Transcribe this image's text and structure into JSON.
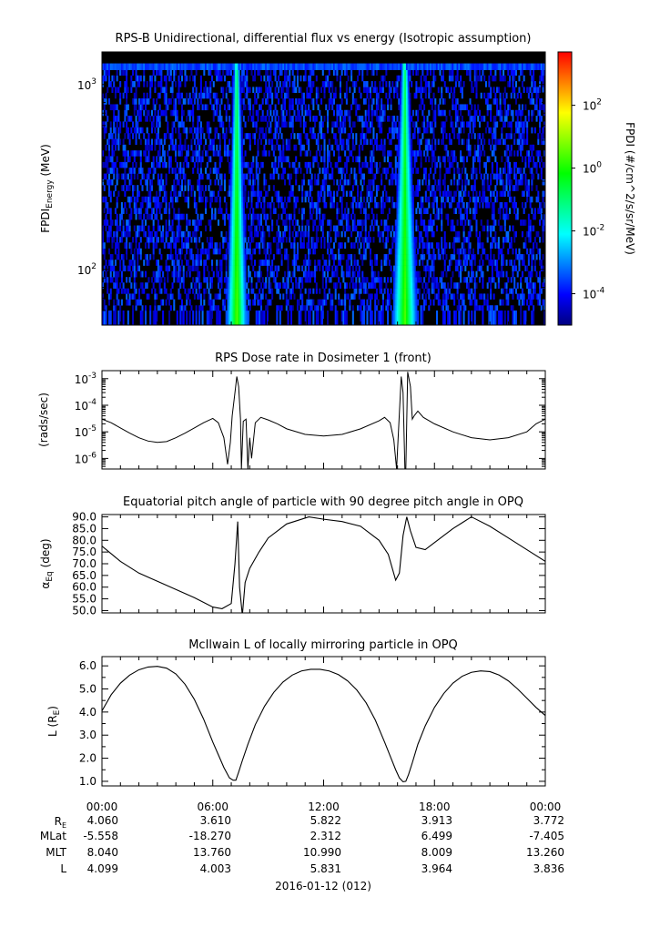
{
  "chart_data": [
    {
      "type": "heatmap",
      "title": "RPS-B  Unidirectional, differential flux vs energy (Isotropic assumption)",
      "ylabel_main": "FPDI",
      "ylabel_sub": "Energy",
      "ylabel_unit": " (MeV)",
      "yscale": "log",
      "ylim": [
        50,
        1500
      ],
      "yticks": [
        {
          "value": 100,
          "base": "10",
          "exp": "2"
        },
        {
          "value": 1000,
          "base": "10",
          "exp": "3"
        }
      ],
      "xlim_hours": [
        0,
        24
      ],
      "energy_channel_top_edges_mev": [
        60,
        64,
        69,
        74,
        79,
        85,
        91,
        98,
        105,
        113,
        121,
        130,
        140,
        150,
        161,
        173,
        186,
        200,
        215,
        231,
        248,
        266,
        286,
        307,
        330,
        355,
        381,
        410,
        440,
        473,
        508,
        546,
        587,
        631,
        678,
        728,
        782,
        841,
        903,
        970,
        1043,
        1120,
        1200,
        1300
      ],
      "log_flux_background": -4.0,
      "log_flux_topband": -3.5,
      "flux_peaks": [
        {
          "center_hour": 7.3,
          "width_hours": 0.45,
          "peak_log_flux": 0.6
        },
        {
          "center_hour": 16.4,
          "width_hours": 0.55,
          "peak_log_flux": 0.5
        }
      ],
      "colorbar": {
        "label": "FPDI (#/cm^2/s/sr/MeV)",
        "log_range": [
          -5.0,
          3.7
        ],
        "ticks": [
          {
            "base": "10",
            "exp": "2",
            "log": 2
          },
          {
            "base": "10",
            "exp": "0",
            "log": 0
          },
          {
            "base": "10",
            "exp": "-2",
            "log": -2
          },
          {
            "base": "10",
            "exp": "-4",
            "log": -4
          }
        ],
        "colors": [
          "#000080",
          "#0000ff",
          "#0080ff",
          "#00ffff",
          "#00ff80",
          "#00ff00",
          "#80ff00",
          "#ffff00",
          "#ff8000",
          "#ff0000"
        ]
      }
    },
    {
      "type": "line",
      "title": "RPS  Dose rate in Dosimeter 1 (front)",
      "ylabel": "(rads/sec)",
      "yscale": "log",
      "ylim": [
        4e-07,
        0.002
      ],
      "yticks": [
        {
          "value": 1e-06,
          "base": "10",
          "exp": "-6"
        },
        {
          "value": 1e-05,
          "base": "10",
          "exp": "-5"
        },
        {
          "value": 0.0001,
          "base": "10",
          "exp": "-4"
        },
        {
          "value": 0.001,
          "base": "10",
          "exp": "-3"
        }
      ],
      "x_hours": [
        0,
        0.5,
        1,
        1.5,
        2,
        2.5,
        3,
        3.5,
        4,
        4.5,
        5,
        5.5,
        6,
        6.3,
        6.6,
        6.8,
        6.95,
        7.05,
        7.2,
        7.3,
        7.4,
        7.5,
        7.55,
        7.65,
        7.8,
        7.9,
        8.0,
        8.1,
        8.3,
        8.6,
        9,
        9.5,
        10,
        11,
        12,
        13,
        14,
        15,
        15.3,
        15.6,
        15.8,
        15.95,
        16.05,
        16.2,
        16.3,
        16.4,
        16.45,
        16.55,
        16.7,
        16.8,
        16.9,
        17.1,
        17.4,
        18,
        19,
        20,
        21,
        22,
        23,
        23.5,
        24
      ],
      "y_values": [
        3e-05,
        2.2e-05,
        1.4e-05,
        9e-06,
        6e-06,
        4.5e-06,
        4e-06,
        4.3e-06,
        6e-06,
        9e-06,
        1.4e-05,
        2.2e-05,
        3.2e-05,
        2.2e-05,
        6e-06,
        6e-07,
        4e-06,
        4e-05,
        0.0003,
        0.0012,
        0.0005,
        3e-05,
        4e-07,
        2.5e-05,
        3e-05,
        4e-07,
        6e-06,
        1e-06,
        2.2e-05,
        3.5e-05,
        2.8e-05,
        2e-05,
        1.3e-05,
        8e-06,
        7e-06,
        8e-06,
        1.3e-05,
        2.6e-05,
        3.5e-05,
        2.2e-05,
        5e-06,
        4e-07,
        1e-05,
        0.0012,
        0.0003,
        4e-07,
        4e-07,
        0.0018,
        0.0005,
        3e-05,
        4e-05,
        6e-05,
        3.5e-05,
        2e-05,
        1e-05,
        6e-06,
        5e-06,
        6e-06,
        1e-05,
        2e-05,
        3e-05
      ]
    },
    {
      "type": "line",
      "title": "Equatorial pitch angle of particle with 90 degree pitch angle in OPQ",
      "ylabel_main": "α",
      "ylabel_sub": "Eq",
      "ylabel_unit": " (deg)",
      "ylim": [
        49,
        91
      ],
      "yticks": [
        50,
        55,
        60,
        65,
        70,
        75,
        80,
        85,
        90
      ],
      "x_hours": [
        0,
        1,
        2,
        3,
        4,
        5,
        6,
        6.5,
        7.0,
        7.2,
        7.35,
        7.45,
        7.6,
        7.75,
        8.0,
        8.5,
        9,
        10,
        11.2,
        12,
        13,
        14,
        15,
        15.5,
        15.9,
        16.1,
        16.3,
        16.5,
        16.7,
        17,
        17.5,
        18,
        19,
        20.0,
        21,
        22,
        23,
        24
      ],
      "y_values": [
        77.5,
        71,
        66,
        62.5,
        59,
        55.5,
        51.5,
        50.8,
        53,
        70,
        88,
        60,
        48,
        62,
        68,
        75,
        81,
        87,
        90,
        89,
        88,
        86,
        80,
        74,
        63,
        66,
        82,
        90,
        84,
        77,
        76,
        79,
        85,
        90,
        86,
        81,
        76,
        71
      ]
    },
    {
      "type": "line",
      "title": "McIlwain L of locally mirroring particle in OPQ",
      "ylabel_main": "L (R",
      "ylabel_sub": "E",
      "ylabel_unit": ")",
      "ylim": [
        0.8,
        6.4
      ],
      "yticks": [
        1,
        2,
        3,
        4,
        5,
        6
      ],
      "x_hours": [
        0,
        0.5,
        1,
        1.5,
        2,
        2.5,
        3,
        3.5,
        4,
        4.5,
        5,
        5.5,
        6,
        6.3,
        6.6,
        6.9,
        7.1,
        7.25,
        7.4,
        7.6,
        7.9,
        8.3,
        8.8,
        9.3,
        9.8,
        10.3,
        10.8,
        11.3,
        11.8,
        12.3,
        12.8,
        13.3,
        13.8,
        14.3,
        14.8,
        15.3,
        15.6,
        15.9,
        16.1,
        16.3,
        16.45,
        16.6,
        16.8,
        17.1,
        17.5,
        18,
        18.5,
        19,
        19.5,
        20,
        20.5,
        21,
        21.5,
        22,
        22.5,
        23,
        23.5,
        24
      ],
      "y_values": [
        4.05,
        4.75,
        5.25,
        5.6,
        5.83,
        5.95,
        5.98,
        5.9,
        5.65,
        5.2,
        4.55,
        3.7,
        2.7,
        2.15,
        1.6,
        1.15,
        1.05,
        1.05,
        1.4,
        1.9,
        2.6,
        3.45,
        4.25,
        4.85,
        5.3,
        5.6,
        5.78,
        5.85,
        5.85,
        5.78,
        5.62,
        5.35,
        4.95,
        4.4,
        3.65,
        2.7,
        2.1,
        1.5,
        1.15,
        0.98,
        1.0,
        1.3,
        1.8,
        2.6,
        3.4,
        4.2,
        4.8,
        5.25,
        5.55,
        5.72,
        5.78,
        5.75,
        5.6,
        5.35,
        5.0,
        4.6,
        4.2,
        3.85
      ]
    }
  ],
  "ephemeris": {
    "times": [
      "00:00",
      "06:00",
      "12:00",
      "18:00",
      "00:00"
    ],
    "rows": [
      {
        "label_main": "R",
        "label_sub": "E",
        "values": [
          "4.060",
          "3.610",
          "5.822",
          "3.913",
          "3.772"
        ]
      },
      {
        "label_main": "MLat",
        "label_sub": "",
        "values": [
          "-5.558",
          "-18.270",
          "2.312",
          "6.499",
          "-7.405"
        ]
      },
      {
        "label_main": "MLT",
        "label_sub": "",
        "values": [
          "8.040",
          "13.760",
          "10.990",
          "8.009",
          "13.260"
        ]
      },
      {
        "label_main": "L",
        "label_sub": "",
        "values": [
          "4.099",
          "4.003",
          "5.831",
          "3.964",
          "3.836"
        ]
      }
    ],
    "date_label": "2016-01-12 (012)"
  }
}
